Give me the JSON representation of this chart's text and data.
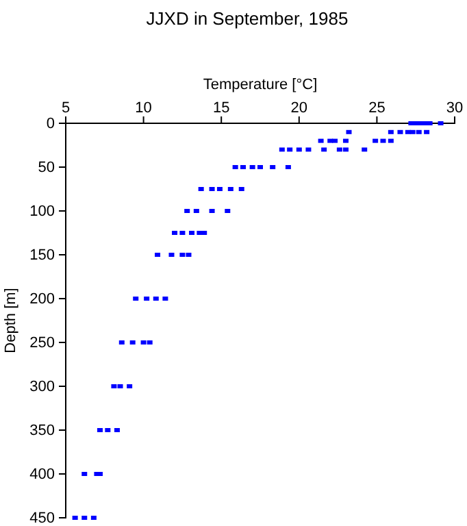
{
  "chart_data": {
    "type": "scatter",
    "title": "JJXD in September, 1985",
    "xlabel": "Temperature [°C]",
    "ylabel": "Depth [m]",
    "marker": "square",
    "grid": false,
    "xlim": [
      5,
      30
    ],
    "xticks": [
      5,
      10,
      15,
      20,
      25,
      30
    ],
    "ylim": [
      450,
      0
    ],
    "yticks": [
      0,
      50,
      100,
      150,
      200,
      250,
      300,
      350,
      400,
      450
    ],
    "series": [
      {
        "color": "#0000ff",
        "x": [
          27.2,
          27.5,
          27.8,
          28.1,
          28.4,
          29.1,
          23.2,
          25.9,
          26.5,
          27.0,
          27.3,
          27.7,
          28.2,
          21.4,
          22.0,
          22.3,
          23.0,
          24.9,
          25.4,
          25.9,
          18.9,
          19.4,
          20.0,
          20.6,
          21.6,
          22.6,
          23.0,
          24.2,
          15.9,
          16.4,
          17.0,
          17.5,
          18.3,
          19.3,
          13.7,
          14.4,
          14.9,
          15.6,
          16.3,
          12.8,
          13.4,
          14.4,
          15.4,
          12.0,
          12.5,
          13.1,
          13.6,
          13.9,
          10.9,
          11.8,
          12.5,
          12.9,
          9.5,
          10.2,
          10.8,
          11.4,
          8.6,
          9.3,
          10.0,
          10.4,
          8.1,
          8.5,
          9.1,
          7.2,
          7.7,
          8.3,
          6.2,
          7.0,
          7.2,
          5.6,
          6.2,
          6.8
        ],
        "values": [
          0,
          0,
          0,
          0,
          0,
          0,
          10,
          10,
          10,
          10,
          10,
          10,
          10,
          20,
          20,
          20,
          20,
          20,
          20,
          20,
          30,
          30,
          30,
          30,
          30,
          30,
          30,
          30,
          50,
          50,
          50,
          50,
          50,
          50,
          75,
          75,
          75,
          75,
          75,
          100,
          100,
          100,
          100,
          125,
          125,
          125,
          125,
          125,
          150,
          150,
          150,
          150,
          200,
          200,
          200,
          200,
          250,
          250,
          250,
          250,
          300,
          300,
          300,
          350,
          350,
          350,
          400,
          400,
          400,
          450,
          450,
          450
        ]
      }
    ]
  }
}
